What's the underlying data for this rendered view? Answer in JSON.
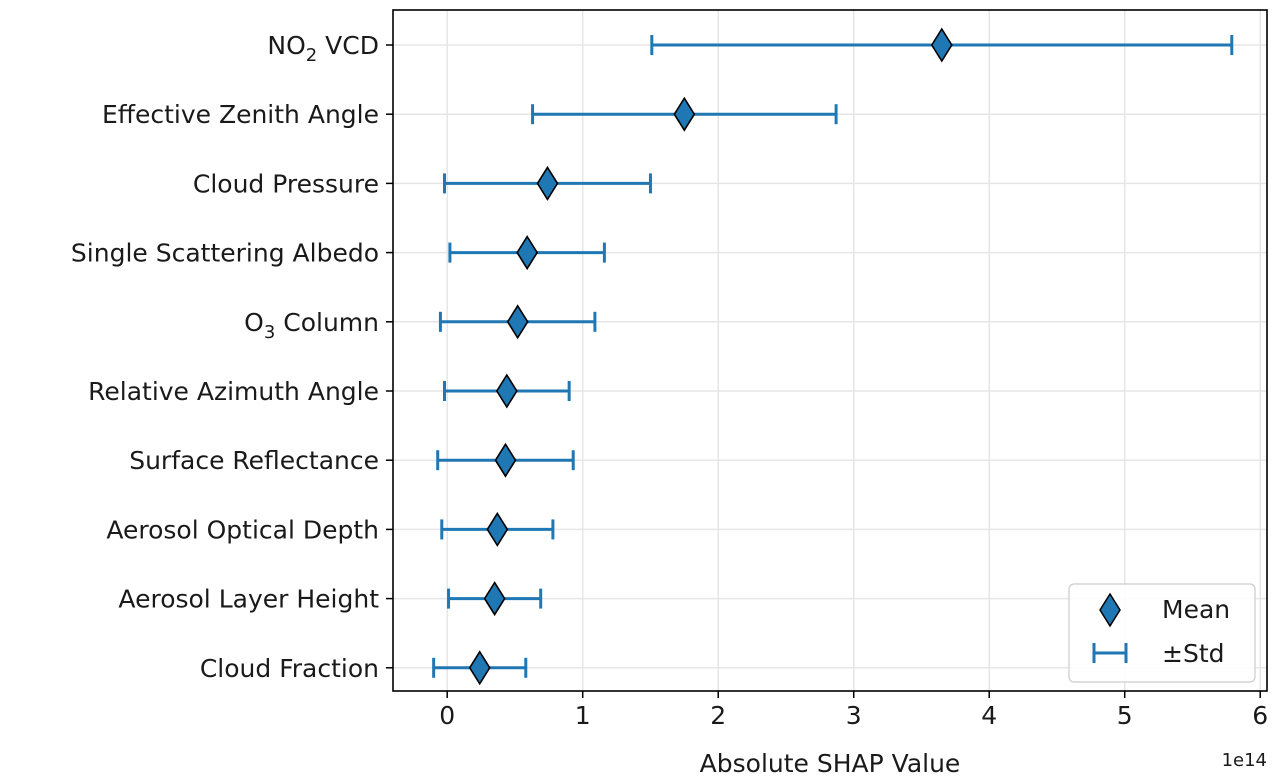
{
  "chart_data": {
    "type": "scatter",
    "title": "",
    "xlabel": "Absolute SHAP Value",
    "x_offset_label": "1e14",
    "ylabel": "",
    "xlim": [
      -0.4,
      6.05
    ],
    "xticks": [
      0,
      1,
      2,
      3,
      4,
      5,
      6
    ],
    "xtick_labels": [
      "0",
      "1",
      "2",
      "3",
      "4",
      "5",
      "6"
    ],
    "grid": true,
    "legend_position": "lower-right",
    "colors": {
      "marker": "#1f77b4",
      "edge": "#000000",
      "errorbar": "#1f77b4",
      "grid": "#e6e6e6"
    },
    "categories": [
      {
        "label": "NO",
        "sub": "2",
        "suffix": " VCD"
      },
      {
        "label": "Effective Zenith Angle"
      },
      {
        "label": "Cloud Pressure"
      },
      {
        "label": "Single Scattering Albedo"
      },
      {
        "label": "O",
        "sub": "3",
        "suffix": " Column"
      },
      {
        "label": "Relative Azimuth Angle"
      },
      {
        "label": "Surface Reflectance"
      },
      {
        "label": "Aerosol Optical Depth"
      },
      {
        "label": "Aerosol Layer Height"
      },
      {
        "label": "Cloud Fraction"
      }
    ],
    "series": [
      {
        "name": "Mean",
        "values": [
          3.65,
          1.75,
          0.74,
          0.59,
          0.52,
          0.44,
          0.43,
          0.37,
          0.35,
          0.24
        ]
      },
      {
        "name": "±Std",
        "values": [
          2.14,
          1.12,
          0.76,
          0.57,
          0.57,
          0.46,
          0.5,
          0.41,
          0.34,
          0.34
        ]
      }
    ]
  }
}
